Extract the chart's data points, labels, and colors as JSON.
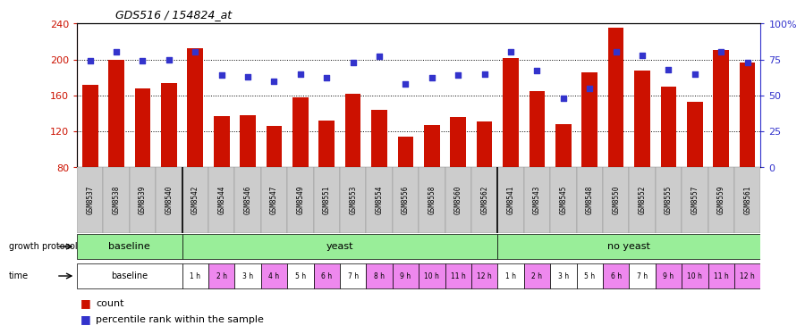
{
  "title": "GDS516 / 154824_at",
  "samples": [
    "GSM8537",
    "GSM8538",
    "GSM8539",
    "GSM8540",
    "GSM8542",
    "GSM8544",
    "GSM8546",
    "GSM8547",
    "GSM8549",
    "GSM8551",
    "GSM8553",
    "GSM8554",
    "GSM8556",
    "GSM8558",
    "GSM8560",
    "GSM8562",
    "GSM8541",
    "GSM8543",
    "GSM8545",
    "GSM8548",
    "GSM8550",
    "GSM8552",
    "GSM8555",
    "GSM8557",
    "GSM8559",
    "GSM8561"
  ],
  "counts": [
    172,
    200,
    168,
    174,
    212,
    137,
    138,
    126,
    158,
    132,
    162,
    144,
    114,
    127,
    136,
    131,
    202,
    165,
    128,
    186,
    235,
    188,
    170,
    153,
    210,
    197
  ],
  "percentiles": [
    74,
    80,
    74,
    75,
    80,
    64,
    63,
    60,
    65,
    62,
    73,
    77,
    58,
    62,
    64,
    65,
    80,
    67,
    48,
    55,
    80,
    78,
    68,
    65,
    80,
    73
  ],
  "bar_color": "#CC1100",
  "dot_color": "#3333CC",
  "ylim_left": [
    80,
    240
  ],
  "ylim_right": [
    0,
    100
  ],
  "left_ticks": [
    80,
    120,
    160,
    200,
    240
  ],
  "right_ticks": [
    0,
    25,
    50,
    75,
    100
  ],
  "left_axis_color": "#CC1100",
  "right_axis_color": "#3333CC",
  "gp_groups": [
    {
      "label": "baseline",
      "start": 0,
      "end": 4,
      "color": "#99EE99"
    },
    {
      "label": "yeast",
      "start": 4,
      "end": 16,
      "color": "#99EE99"
    },
    {
      "label": "no yeast",
      "start": 16,
      "end": 26,
      "color": "#99EE99"
    }
  ],
  "time_per_sample": [
    "baseline",
    "baseline",
    "baseline",
    "baseline",
    "1 h",
    "2 h",
    "3 h",
    "4 h",
    "5 h",
    "6 h",
    "7 h",
    "8 h",
    "9 h",
    "10 h",
    "11 h",
    "12 h",
    "1 h",
    "2 h",
    "3 h",
    "5 h",
    "6 h",
    "7 h",
    "9 h",
    "10 h",
    "11 h",
    "12 h"
  ],
  "pink_times": [
    "2 h",
    "4 h",
    "6 h",
    "8 h",
    "10 h",
    "12 h",
    "9 h",
    "11 h"
  ],
  "pink_color": "#EE88EE",
  "white_color": "#FFFFFF",
  "gp_separator": 16,
  "n_baseline_samples": 4,
  "n_samples": 26
}
